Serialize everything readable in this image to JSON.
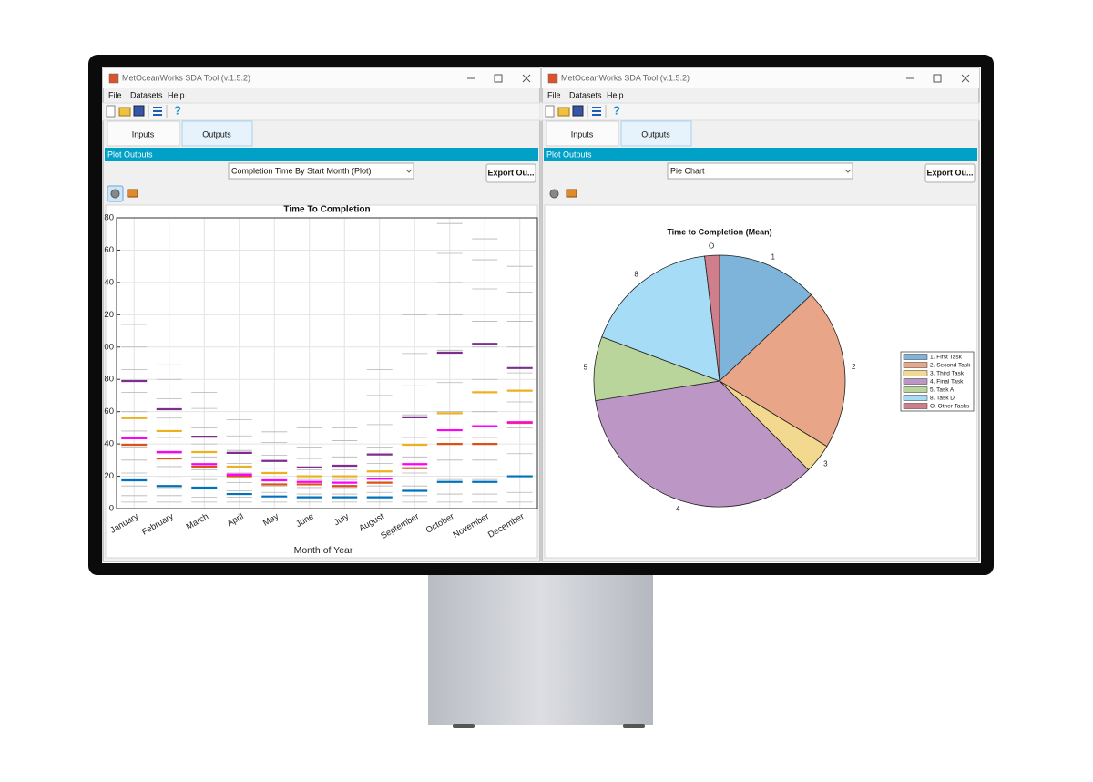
{
  "windows": [
    {
      "title": "MetOceanWorks SDA Tool (v.1.5.2)",
      "menu": [
        "File",
        "Datasets",
        "Help"
      ],
      "help": "?",
      "tabs": [
        "Inputs",
        "Outputs"
      ],
      "panel_title": "Plot Outputs",
      "dropdown": "Completion Time By Start Month (Plot)",
      "button": "Export Ou..."
    },
    {
      "title": "MetOceanWorks SDA Tool (v.1.5.2)",
      "menu": [
        "File",
        "Datasets",
        "Help"
      ],
      "help": "?",
      "tabs": [
        "Inputs",
        "Outputs"
      ],
      "panel_title": "Plot Outputs",
      "dropdown": "Pie Chart",
      "button": "Export Ou..."
    }
  ],
  "chart_data": [
    {
      "type": "strip",
      "title": "Time To Completion",
      "xlabel": "Month of Year",
      "categories": [
        "January",
        "February",
        "March",
        "April",
        "May",
        "June",
        "July",
        "August",
        "September",
        "October",
        "November",
        "December"
      ],
      "ylim": [
        0,
        180
      ],
      "yticks": [
        0,
        20,
        40,
        60,
        80,
        {
          "value": 100,
          "label": "00"
        },
        {
          "value": 120,
          "label": "20"
        },
        {
          "value": 140,
          "label": "40"
        },
        {
          "value": 160,
          "label": "60"
        },
        {
          "value": 180,
          "label": "80"
        }
      ],
      "grid": true,
      "series": [
        {
          "color": "#b4b4b4",
          "values": [
            [
              4,
              8,
              14,
              22,
              30,
              38,
              48,
              60,
              72,
              86,
              100,
              114
            ],
            [
              4,
              8,
              13,
              19,
              26,
              34,
              44,
              56,
              68,
              80,
              89
            ],
            [
              4,
              7,
              12,
              18,
              24,
              32,
              40,
              50,
              62,
              72
            ],
            [
              4,
              7,
              11,
              16,
              22,
              28,
              36,
              45,
              55
            ],
            [
              4,
              6,
              10,
              14,
              19,
              25,
              33,
              41,
              47.5
            ],
            [
              4,
              6,
              9,
              13,
              18,
              24,
              31,
              38,
              50
            ],
            [
              4,
              6,
              9,
              13,
              18,
              24,
              32,
              42,
              50
            ],
            [
              4,
              7,
              10,
              14,
              20,
              28,
              38,
              52,
              70,
              86
            ],
            [
              4,
              8,
              14,
              22,
              32,
              44,
              58,
              76,
              96,
              120,
              165
            ],
            [
              4,
              9,
              18,
              30,
              44,
              60,
              78,
              98,
              120,
              140,
              158,
              176.5
            ],
            [
              4,
              9,
              18,
              30,
              44,
              60,
              80,
              100,
              116,
              136,
              154,
              167
            ],
            [
              4,
              10,
              20,
              34,
              50,
              66,
              84,
              100,
              116,
              134,
              150
            ]
          ]
        },
        {
          "color": "#0072BD",
          "values": [
            17.5,
            14,
            13,
            9,
            7.5,
            7,
            7,
            7,
            11,
            16.5,
            16.5,
            20
          ]
        },
        {
          "color": "#D95319",
          "values": [
            39.5,
            31,
            26,
            20,
            15,
            15,
            14,
            16,
            25,
            40,
            40,
            53
          ]
        },
        {
          "color": "#FF00FF",
          "values": [
            43.5,
            35,
            27.5,
            21,
            17.5,
            16.5,
            16,
            18.5,
            27.5,
            48.5,
            51,
            53.5
          ]
        },
        {
          "color": "#EDB120",
          "values": [
            56,
            48,
            35,
            26,
            22,
            20,
            20,
            23,
            39.5,
            59,
            72,
            73
          ]
        },
        {
          "color": "#7E2F8E",
          "values": [
            79,
            61.5,
            44.5,
            34.5,
            29.5,
            25.5,
            26.5,
            33.5,
            56.5,
            96.5,
            102,
            87
          ]
        }
      ]
    },
    {
      "type": "pie",
      "title": "Time to Completion (Mean)",
      "labels": [
        "1",
        "2",
        "3",
        "4",
        "5",
        "8",
        "O"
      ],
      "categories": [
        "1. First Task",
        "2. Second Task",
        "3. Third Task",
        "4. Final Task",
        "5. Task A",
        "8. Task D",
        "O.  Other Tasks"
      ],
      "values": [
        13,
        20.7,
        3.8,
        35,
        8.2,
        17.4,
        1.9
      ],
      "colors": [
        "#7eb4da",
        "#e9a588",
        "#f3d98f",
        "#bc97c5",
        "#b9d59c",
        "#a7dcf6",
        "#cf7f8b"
      ]
    }
  ]
}
